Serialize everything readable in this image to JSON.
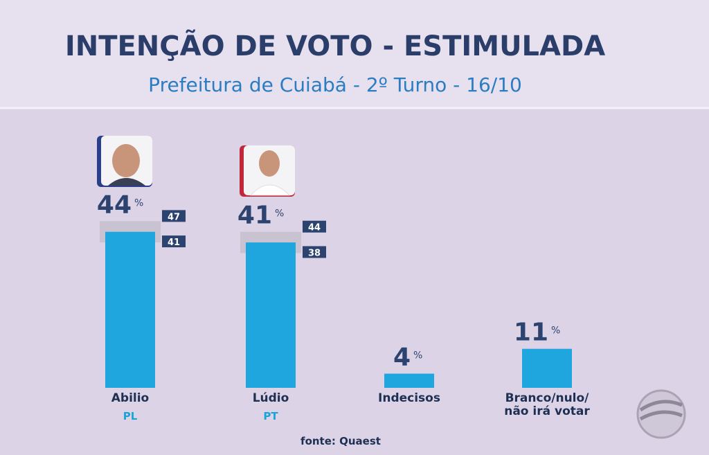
{
  "chart_data": {
    "type": "bar",
    "title": "INTENÇÃO DE VOTO - ESTIMULADA",
    "subtitle": "Prefeitura de Cuiabá - 2º Turno - 16/10",
    "categories": [
      "Abilio",
      "Lúdio",
      "Indecisos",
      "Branco/nulo/\nnão irá votar"
    ],
    "parties": [
      "PL",
      "PT",
      null,
      null
    ],
    "values": [
      44,
      41,
      4,
      11
    ],
    "unit": "%",
    "low": [
      41,
      38,
      null,
      null
    ],
    "high": [
      47,
      44,
      null,
      null
    ],
    "color": "#1fa6df",
    "ylim": [
      0,
      50
    ],
    "source": "fonte: Quaest"
  }
}
